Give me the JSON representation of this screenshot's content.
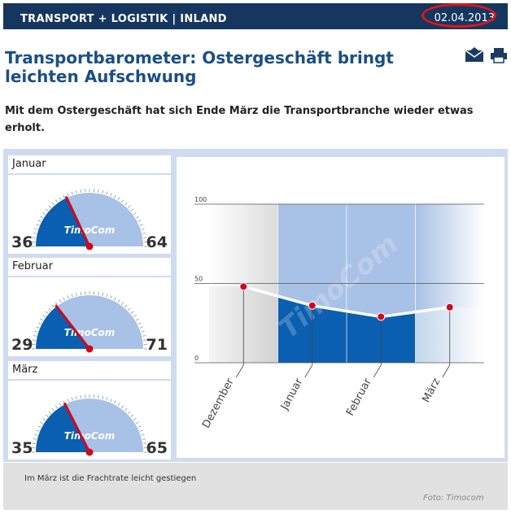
{
  "header": {
    "section": "TRANSPORT + LOGISTIK | INLAND",
    "date": "02.04.2013"
  },
  "article": {
    "title": "Transportbarometer: Ostergeschäft bringt leichten Aufschwung",
    "intro": "Mit dem Ostergeschäft hat sich Ende März die Transportbranche wieder etwas erholt."
  },
  "tools": {
    "email": "envelope-icon",
    "print": "printer-icon"
  },
  "gauges": [
    {
      "month": "Januar",
      "left": "36",
      "right": "64",
      "left_share": 36
    },
    {
      "month": "Februar",
      "left": "29",
      "right": "71",
      "left_share": 29
    },
    {
      "month": "März",
      "left": "35",
      "right": "65",
      "left_share": 35
    }
  ],
  "gauge_brand": "TimoCom",
  "chart_data": {
    "type": "line",
    "categories": [
      "Dezember",
      "Januar",
      "Februar",
      "März"
    ],
    "values": [
      48,
      36,
      29,
      35
    ],
    "ylim": [
      0,
      100
    ],
    "yticks": [
      "0",
      "50",
      "100"
    ],
    "watermark": "TimoCom"
  },
  "figure": {
    "caption": "Im März ist die Frachtrate leicht gestiegen",
    "credit": "Foto: Timocom"
  },
  "colors": {
    "navy": "#15365f",
    "accent": "#1a4f86",
    "marker": "#d4061c",
    "deep_blue": "#0a5fb0",
    "light_blue": "#a8c1e6"
  }
}
